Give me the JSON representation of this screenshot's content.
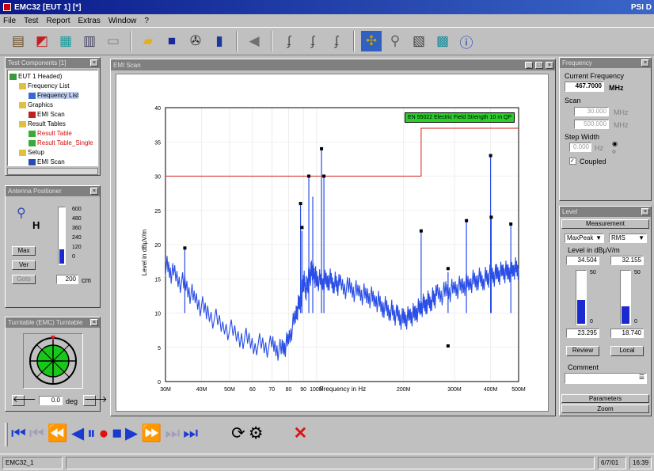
{
  "app": {
    "title": "EMC32 [EUT 1] [*]",
    "title_right": "PSI D"
  },
  "menu": [
    "File",
    "Test",
    "Report",
    "Extras",
    "Window",
    "?"
  ],
  "toolbar_icons": [
    "open-test-icon",
    "chart-icon",
    "device-icon",
    "table-icon",
    "report-icon",
    "folder-icon",
    "save-icon",
    "settings-icon",
    "document-icon",
    "back-icon",
    "curve-1-icon",
    "curve-2-icon",
    "curve-3-icon",
    "highlight-icon",
    "marker-icon",
    "calculate-icon",
    "export-icon",
    "info-icon"
  ],
  "explorer": {
    "title": "Test Components [1]",
    "items": [
      {
        "label": "EUT 1 Headed)",
        "level": 0,
        "color": "#000"
      },
      {
        "label": "Frequency List",
        "level": 1,
        "color": "#000"
      },
      {
        "label": "Frequency List",
        "level": 2,
        "color": "#000"
      },
      {
        "label": "Graphics",
        "level": 1,
        "color": "#000"
      },
      {
        "label": "EMI Scan",
        "level": 2,
        "color": "#000"
      },
      {
        "label": "Result Tables",
        "level": 1,
        "color": "#000"
      },
      {
        "label": "Result Table",
        "level": 2,
        "color": "#d01010"
      },
      {
        "label": "Result Table_Single",
        "level": 2,
        "color": "#d01010"
      },
      {
        "label": "Setup",
        "level": 1,
        "color": "#000"
      },
      {
        "label": "EMI Scan",
        "level": 2,
        "color": "#000"
      }
    ]
  },
  "antenna": {
    "title": "Antenna Positioner",
    "pol": "H",
    "scale": [
      "600",
      "480",
      "360",
      "240",
      "120",
      "0"
    ],
    "level_fraction": 0.25,
    "btn_max": "Max",
    "btn_ver": "Ver",
    "btn_goto": "Goto",
    "height_value": "200",
    "height_unit": "cm"
  },
  "turntable": {
    "title": "Turntable (EMC) Turntable",
    "angle_value": "0.0",
    "angle_unit": "deg"
  },
  "chart_window": {
    "title": "EMI Scan"
  },
  "chart_data": {
    "type": "line",
    "ylabel": "Level in dBµV/m",
    "xlabel": "Frequency in Hz",
    "ylim": [
      0,
      40
    ],
    "xlim": [
      30,
      500
    ],
    "xscale": "log",
    "yticks": [
      0,
      5,
      10,
      15,
      20,
      25,
      30,
      35,
      40
    ],
    "xticks": [
      {
        "v": 30,
        "l": "30M"
      },
      {
        "v": 40,
        "l": "40M"
      },
      {
        "v": 50,
        "l": "50M"
      },
      {
        "v": 60,
        "l": "60"
      },
      {
        "v": 70,
        "l": "70"
      },
      {
        "v": 80,
        "l": "80"
      },
      {
        "v": 90,
        "l": "90"
      },
      {
        "v": 100,
        "l": "100M"
      },
      {
        "v": 200,
        "l": "200M"
      },
      {
        "v": 300,
        "l": "300M"
      },
      {
        "v": 400,
        "l": "400M"
      },
      {
        "v": 500,
        "l": "500M"
      }
    ],
    "limit": {
      "name": "EN 55022 Electric Field Strength 10 m QP",
      "x": [
        30,
        230,
        230,
        500
      ],
      "y": [
        30,
        30,
        37,
        37
      ]
    },
    "series": [
      {
        "color": "#2a4ee6",
        "x": [
          30,
          32,
          35,
          38,
          42,
          48,
          55,
          62,
          70,
          76,
          80,
          85,
          88,
          90,
          92,
          94,
          96,
          98,
          100,
          105,
          110,
          115,
          120,
          130,
          140,
          150,
          160,
          170,
          180,
          190,
          200,
          210,
          220,
          230,
          240,
          250,
          260,
          280,
          300,
          320,
          340,
          360,
          380,
          400,
          420,
          440,
          460,
          480,
          500
        ],
        "y": [
          17,
          15.5,
          14,
          12,
          10,
          8,
          6.5,
          5.5,
          5,
          4.5,
          6,
          10,
          12,
          15,
          13.5,
          15,
          16,
          15.5,
          15,
          14.5,
          15,
          14.5,
          14,
          13.5,
          13,
          12.5,
          12,
          11,
          10.5,
          9.5,
          9,
          9.5,
          10,
          11,
          11.5,
          12,
          12.5,
          13,
          13.5,
          14,
          14.5,
          15,
          15,
          15.5,
          15.5,
          16,
          16,
          16.5,
          16.5
        ]
      }
    ],
    "spikes": [
      {
        "x": 35,
        "y": 19.5
      },
      {
        "x": 88,
        "y": 26
      },
      {
        "x": 89,
        "y": 22
      },
      {
        "x": 94,
        "y": 30
      },
      {
        "x": 97,
        "y": 27
      },
      {
        "x": 104,
        "y": 34
      },
      {
        "x": 106,
        "y": 30
      },
      {
        "x": 230,
        "y": 22
      },
      {
        "x": 285,
        "y": 16
      },
      {
        "x": 330,
        "y": 23.5
      },
      {
        "x": 400,
        "y": 33
      },
      {
        "x": 402,
        "y": 24
      },
      {
        "x": 470,
        "y": 23
      }
    ],
    "markers": [
      {
        "x": 35,
        "y": 19.5
      },
      {
        "x": 88,
        "y": 26
      },
      {
        "x": 89,
        "y": 22.5
      },
      {
        "x": 94,
        "y": 30
      },
      {
        "x": 104,
        "y": 34
      },
      {
        "x": 106,
        "y": 30
      },
      {
        "x": 230,
        "y": 22
      },
      {
        "x": 285,
        "y": 16.5
      },
      {
        "x": 285,
        "y": 5.2
      },
      {
        "x": 330,
        "y": 23.5
      },
      {
        "x": 400,
        "y": 33
      },
      {
        "x": 402,
        "y": 24
      },
      {
        "x": 470,
        "y": 23
      }
    ]
  },
  "frequency_panel": {
    "title": "Frequency",
    "current_label": "Current Frequency",
    "current_value": "467.7000",
    "current_unit": "MHz",
    "scan_label": "Scan",
    "scan_from": "30.000",
    "scan_to": "500.000",
    "scan_unit": "MHz",
    "step_label": "Step Width",
    "step_value": "0.000",
    "step_unit": "Hz",
    "coupled_label": "Coupled"
  },
  "level_panel": {
    "title": "Level",
    "tab": "Measurement",
    "det1": "MaxPeak",
    "det2": "RMS",
    "unit_label": "Level in dBµV/m",
    "val1": "34.504",
    "val2": "32.155",
    "bar1_scale": [
      "50",
      "0"
    ],
    "bar2_scale": [
      "50",
      "0"
    ],
    "bar1_fraction": 0.45,
    "bar2_fraction": 0.33,
    "min1": "23.295",
    "min2": "18.740",
    "btn_review": "Review",
    "btn_local": "Local",
    "comment_label": "Comment",
    "btn_parameters": "Parameters",
    "btn_zoom": "Zoom"
  },
  "status": {
    "left": "EMC32_1",
    "mid": "",
    "date": "6/7/01",
    "time": "16:39"
  }
}
